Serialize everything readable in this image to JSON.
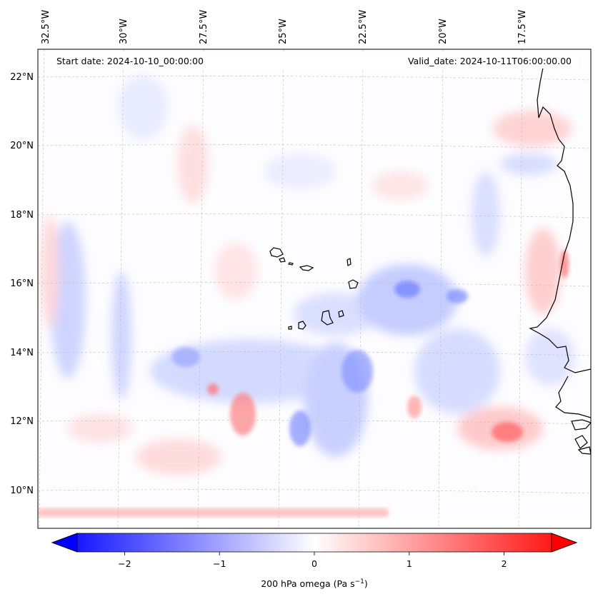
{
  "header": {
    "start_date": "Start date: 2024-10-10_00:00:00",
    "valid_date": "Valid_date: 2024-10-11T06:00:00.00"
  },
  "axes": {
    "top_ticks": [
      "32.5°W",
      "30°W",
      "27.5°W",
      "25°W",
      "22.5°W",
      "20°W",
      "17.5°W"
    ],
    "left_ticks": [
      "22°N",
      "20°N",
      "18°N",
      "16°N",
      "14°N",
      "12°N",
      "10°N"
    ],
    "gridlines": true
  },
  "colorbar": {
    "label_main": "200 hPa omega (Pa s",
    "label_exp": "−1",
    "label_close": ")",
    "ticks": [
      "−2",
      "−1",
      "0",
      "1",
      "2"
    ],
    "tick_values": [
      -2,
      -1,
      0,
      1,
      2
    ],
    "range": [
      -2.5,
      2.5
    ],
    "colormap": "bwr",
    "extend": "both"
  },
  "colors": {
    "negative": "#0000ff",
    "neutral": "#ffffff",
    "positive": "#ff0000",
    "coastline": "#000000",
    "gridline": "#bbbbbb"
  },
  "chart_data": {
    "type": "heatmap",
    "variable": "200 hPa omega",
    "units": "Pa s^-1",
    "x_range": [
      -33,
      -14.5
    ],
    "y_range": [
      9,
      22.8
    ],
    "value_range": [
      -2.5,
      2.5
    ]
  }
}
